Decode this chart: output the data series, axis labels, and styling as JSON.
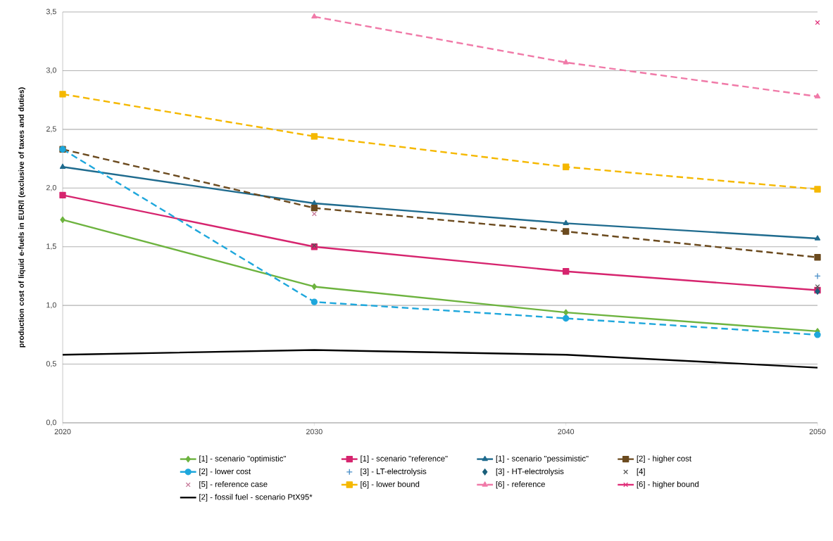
{
  "chart_data": {
    "type": "line",
    "ylabel": "production cost of liquid e-fuels in EUR/l (exclusive of taxes and duties)",
    "x": [
      2020,
      2030,
      2040,
      2050
    ],
    "xlim": [
      2020,
      2050
    ],
    "xticks": [
      2020,
      2030,
      2040,
      2050
    ],
    "ylim": [
      0,
      3.5
    ],
    "yticks": [
      {
        "value": 0,
        "label": "0,0"
      },
      {
        "value": 0.5,
        "label": "0,5"
      },
      {
        "value": 1,
        "label": "1,0"
      },
      {
        "value": 1.5,
        "label": "1,5"
      },
      {
        "value": 2,
        "label": "2,0"
      },
      {
        "value": 2.5,
        "label": "2,5"
      },
      {
        "value": 3,
        "label": "3,0"
      },
      {
        "value": 3.5,
        "label": "3,5"
      }
    ],
    "grid": "y",
    "legend": "bottom",
    "series": [
      {
        "name": "[1] - scenario \"optimistic\"",
        "color": "#6db33f",
        "marker": "diamond",
        "line_style": "solid",
        "values": [
          1.73,
          1.16,
          0.94,
          0.78
        ]
      },
      {
        "name": "[1] - scenario \"reference\"",
        "color": "#d6246e",
        "marker": "square",
        "line_style": "solid",
        "values": [
          1.94,
          1.5,
          1.29,
          1.13
        ]
      },
      {
        "name": "[1] - scenario \"pessimistic\"",
        "color": "#1f6b8e",
        "marker": "triangle",
        "line_style": "solid",
        "values": [
          2.18,
          1.87,
          1.7,
          1.57
        ]
      },
      {
        "name": "[2] - higher cost",
        "color": "#6b4a1e",
        "marker": "square",
        "line_style": "dashed",
        "values": [
          2.33,
          1.83,
          1.63,
          1.41
        ]
      },
      {
        "name": "[2] - lower cost",
        "color": "#1ea7dc",
        "marker": "circle",
        "line_style": "dashed",
        "values": [
          2.33,
          1.03,
          0.89,
          0.75
        ]
      },
      {
        "name": "[3] - LT-electrolysis",
        "type": "scatter",
        "color": "#4a8fc8",
        "marker": "plus",
        "values": [
          null,
          null,
          null,
          1.25
        ]
      },
      {
        "name": "[3] - HT-electrolysis",
        "type": "scatter",
        "color": "#1a5f7a",
        "marker": "diamond",
        "values": [
          null,
          null,
          null,
          1.12
        ]
      },
      {
        "name": "[4]",
        "type": "scatter",
        "color": "#555555",
        "marker": "cross",
        "values": [
          null,
          1.51,
          null,
          1.16
        ]
      },
      {
        "name": "[5] - reference case",
        "type": "scatter",
        "color": "#c77a9a",
        "marker": "cross",
        "values": [
          null,
          1.78,
          null,
          null
        ]
      },
      {
        "name": "[6] - lower bound",
        "color": "#f5b800",
        "marker": "square",
        "line_style": "dashed",
        "values": [
          2.8,
          2.44,
          2.18,
          1.99
        ]
      },
      {
        "name": "[6] - reference",
        "color": "#f07aa8",
        "marker": "triangle",
        "line_style": "dashed",
        "values": [
          null,
          3.46,
          3.07,
          2.78
        ]
      },
      {
        "name": "[6] - higher bound",
        "color": "#e0307a",
        "marker": "cross",
        "line_style": "solid",
        "values": [
          null,
          null,
          null,
          3.41
        ]
      },
      {
        "name": "[2] - fossil fuel - scenario PtX95*",
        "color": "#000000",
        "marker": "none",
        "line_style": "solid",
        "values": [
          0.58,
          0.62,
          0.58,
          0.47
        ]
      }
    ]
  }
}
